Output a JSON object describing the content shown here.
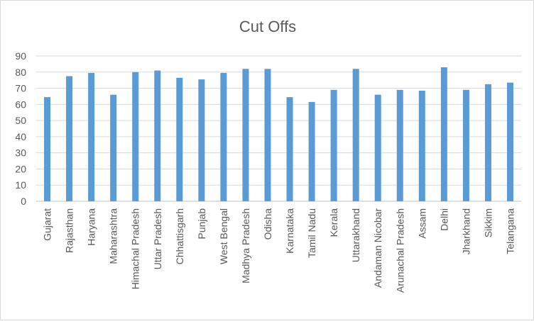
{
  "chart_data": {
    "type": "bar",
    "title": "Cut Offs",
    "xlabel": "",
    "ylabel": "",
    "ylim": [
      0,
      90
    ],
    "yticks": [
      0,
      10,
      20,
      30,
      40,
      50,
      60,
      70,
      80,
      90
    ],
    "grid": true,
    "legend": "none",
    "color": "#5b9bd5",
    "categories": [
      "Gujarat",
      "Rajasthan",
      "Haryana",
      "Maharashtra",
      "Himachal Pradesh",
      "Uttar Pradesh",
      "Chhattisgarh",
      "Punjab",
      "West Bengal",
      "Madhya Pradesh",
      "Odisha",
      "Karnataka",
      "Tamil Nadu",
      "Kerala",
      "Uttarakhand",
      "Andaman Nicobar",
      "Arunachal Pradesh",
      "Assam",
      "Delhi",
      "Jharkhand",
      "Sikkim",
      "Telangana"
    ],
    "values": [
      64.5,
      77.5,
      79.5,
      66,
      80,
      81,
      76.5,
      75.5,
      79.5,
      82,
      82,
      64.5,
      61.5,
      69,
      82,
      66,
      69,
      68.5,
      83,
      69,
      72.5,
      73.5
    ]
  }
}
